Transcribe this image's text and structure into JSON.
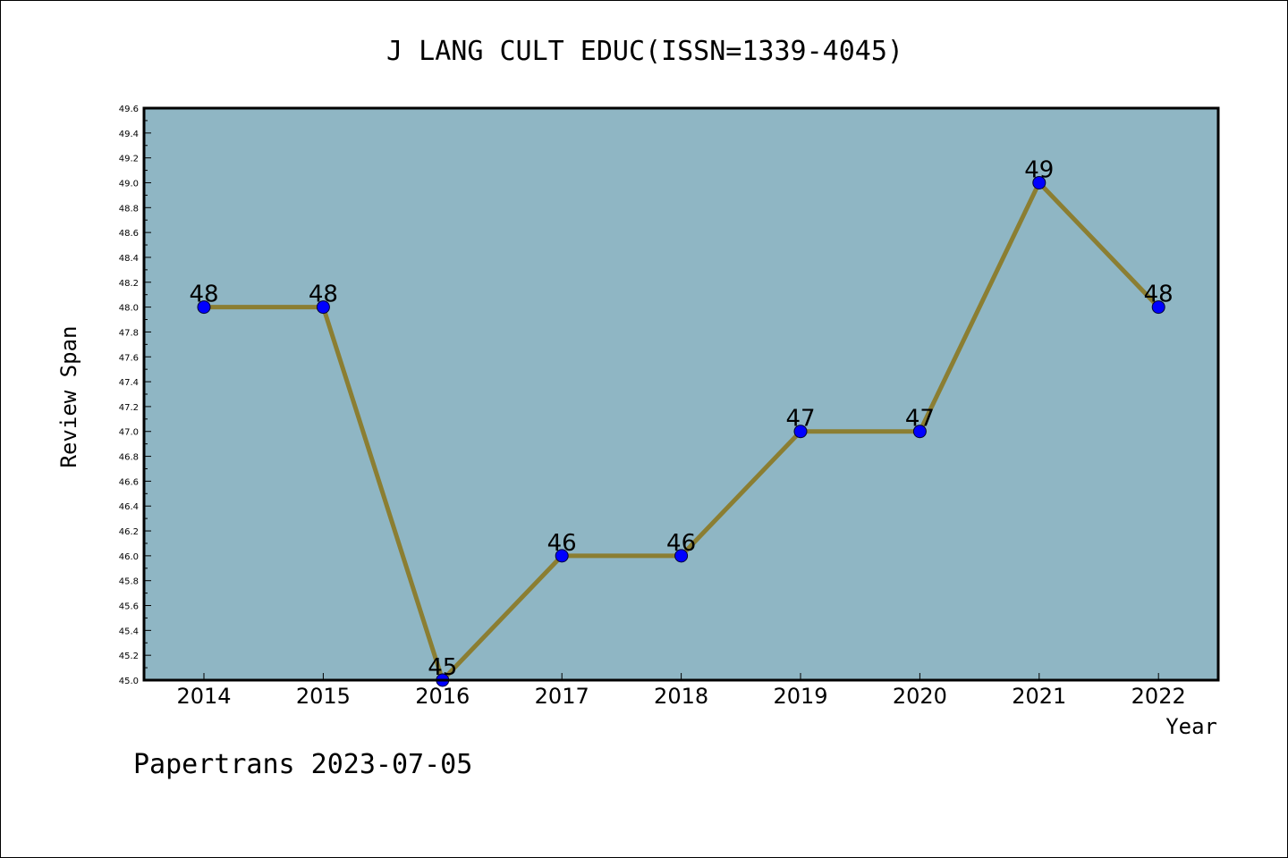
{
  "chart_data": {
    "type": "line",
    "title": "J LANG CULT EDUC(ISSN=1339-4045)",
    "xlabel": "Year",
    "ylabel": "Review Span",
    "categories": [
      "2014",
      "2015",
      "2016",
      "2017",
      "2018",
      "2019",
      "2020",
      "2021",
      "2022"
    ],
    "series": [
      {
        "values": [
          48,
          48,
          45,
          46,
          46,
          47,
          47,
          49,
          48
        ]
      }
    ],
    "data_labels": [
      "48",
      "48",
      "45",
      "46",
      "46",
      "47",
      "47",
      "49",
      "48"
    ],
    "ylim": [
      45.0,
      49.6
    ],
    "yticks": [
      "45.0",
      "45.2",
      "45.4",
      "45.6",
      "45.8",
      "46.0",
      "46.2",
      "46.4",
      "46.6",
      "46.8",
      "47.0",
      "47.2",
      "47.4",
      "47.6",
      "47.8",
      "48.0",
      "48.2",
      "48.4",
      "48.6",
      "48.8",
      "49.0",
      "49.2",
      "49.4",
      "49.6"
    ],
    "grid": false,
    "legend": "none",
    "colors": {
      "plot_background": "#8fb6c4",
      "line": "#8b7e32",
      "marker": "#0000ff"
    }
  },
  "footer": "Papertrans 2023-07-05"
}
